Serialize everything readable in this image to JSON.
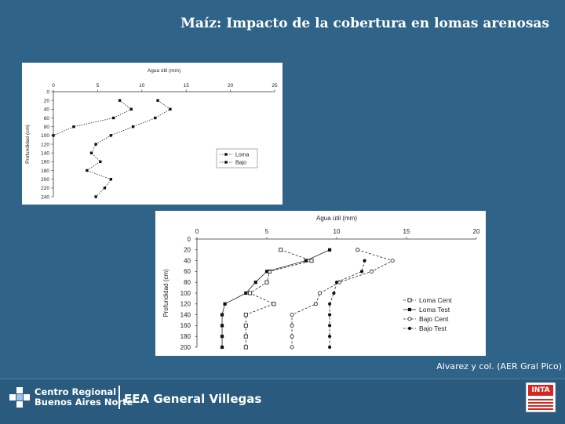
{
  "slide": {
    "title": "Maíz: Impacto de la cobertura en lomas arenosas",
    "citation": "Alvarez y col. (AER Gral Pico)"
  },
  "footer": {
    "org_line1": "Centro Regional",
    "org_line2": "Buenos Aires Norte",
    "station": "EEA General Villegas",
    "inta_logo_text": "INTA"
  },
  "colors": {
    "background": "#2f6387",
    "footer": "#2a5b7e",
    "inta_red": "#d3271f"
  },
  "chart_data": [
    {
      "type": "line",
      "xlabel": "Agua útil (mm)",
      "ylabel": "Profundidad (cm)",
      "xlim": [
        0,
        25
      ],
      "ylim": [
        0,
        240
      ],
      "xticks": [
        0,
        5,
        10,
        15,
        20,
        25
      ],
      "yticks": [
        0,
        20,
        40,
        60,
        80,
        100,
        120,
        140,
        160,
        180,
        200,
        220,
        240
      ],
      "legend_position": "right",
      "series": [
        {
          "name": "Loma",
          "marker": "filled-square",
          "line": "dotted",
          "points": [
            [
              7.5,
              20
            ],
            [
              8.8,
              40
            ],
            [
              6.8,
              60
            ],
            [
              2.3,
              80
            ],
            [
              0,
              100
            ]
          ]
        },
        {
          "name": "Bajo",
          "marker": "filled-square",
          "line": "dotted",
          "points": [
            [
              11.8,
              20
            ],
            [
              13.2,
              40
            ],
            [
              11.5,
              60
            ],
            [
              9,
              80
            ],
            [
              6.5,
              100
            ],
            [
              4.8,
              120
            ],
            [
              4.3,
              140
            ],
            [
              5.3,
              160
            ],
            [
              3.8,
              180
            ],
            [
              6.5,
              200
            ],
            [
              5.8,
              220
            ],
            [
              4.8,
              240
            ]
          ]
        }
      ]
    },
    {
      "type": "line",
      "xlabel": "Agua útil (mm)",
      "ylabel": "Profundidad (cm)",
      "xlim": [
        0,
        20
      ],
      "ylim": [
        0,
        200
      ],
      "xticks": [
        0,
        5,
        10,
        15,
        20
      ],
      "yticks": [
        0,
        20,
        40,
        60,
        80,
        100,
        120,
        140,
        160,
        180,
        200
      ],
      "legend_position": "right",
      "series": [
        {
          "name": "Loma Cent",
          "marker": "open-square",
          "line": "dashed",
          "points": [
            [
              6,
              20
            ],
            [
              8.2,
              40
            ],
            [
              5.2,
              60
            ],
            [
              5,
              80
            ],
            [
              3.8,
              100
            ],
            [
              5.5,
              120
            ],
            [
              3.5,
              140
            ],
            [
              3.5,
              160
            ],
            [
              3.5,
              180
            ],
            [
              3.5,
              200
            ]
          ]
        },
        {
          "name": "Loma Test",
          "marker": "filled-square",
          "line": "solid",
          "points": [
            [
              9.5,
              20
            ],
            [
              7.8,
              40
            ],
            [
              5,
              60
            ],
            [
              4.2,
              80
            ],
            [
              3.5,
              100
            ],
            [
              2,
              120
            ],
            [
              1.8,
              140
            ],
            [
              1.8,
              160
            ],
            [
              1.8,
              180
            ],
            [
              1.8,
              200
            ]
          ]
        },
        {
          "name": "Bajo Cent",
          "marker": "open-circle",
          "line": "dashed",
          "points": [
            [
              11.5,
              20
            ],
            [
              14,
              40
            ],
            [
              12.5,
              60
            ],
            [
              10.2,
              80
            ],
            [
              8.8,
              100
            ],
            [
              8.5,
              120
            ],
            [
              6.8,
              140
            ],
            [
              6.8,
              160
            ],
            [
              6.8,
              180
            ],
            [
              6.8,
              200
            ]
          ]
        },
        {
          "name": "Bajo Test",
          "marker": "filled-circle",
          "line": "dashed",
          "points": [
            [
              12,
              40
            ],
            [
              11.8,
              60
            ],
            [
              10,
              80
            ],
            [
              9.8,
              100
            ],
            [
              9.5,
              120
            ],
            [
              9.5,
              140
            ],
            [
              9.5,
              160
            ],
            [
              9.5,
              180
            ],
            [
              9.5,
              200
            ]
          ]
        }
      ]
    }
  ]
}
